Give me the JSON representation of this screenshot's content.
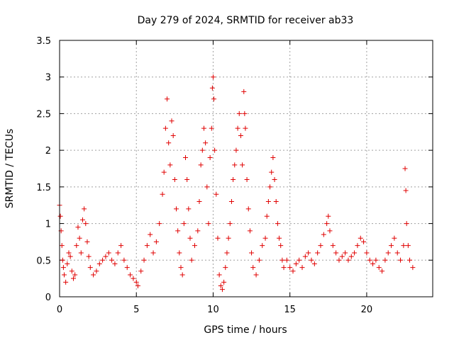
{
  "chart_data": {
    "type": "scatter",
    "title": "Day 279 of 2024, SRMTID for receiver ab33",
    "xlabel": "GPS time / hours",
    "ylabel": "SRMTID / TECUs",
    "xlim": [
      0,
      24.3
    ],
    "ylim": [
      0,
      3.5
    ],
    "xticks": [
      0,
      5,
      10,
      15,
      20
    ],
    "yticks": [
      0,
      0.5,
      1,
      1.5,
      2,
      2.5,
      3,
      3.5
    ],
    "grid": true,
    "marker": "+",
    "series": [
      {
        "name": "SRMTID",
        "color": "#e00000",
        "points": [
          [
            0.0,
            1.25
          ],
          [
            0.05,
            1.1
          ],
          [
            0.1,
            0.9
          ],
          [
            0.15,
            0.7
          ],
          [
            0.2,
            0.5
          ],
          [
            0.25,
            0.4
          ],
          [
            0.3,
            0.3
          ],
          [
            0.4,
            0.2
          ],
          [
            0.5,
            0.45
          ],
          [
            0.6,
            0.6
          ],
          [
            0.7,
            0.55
          ],
          [
            0.8,
            0.35
          ],
          [
            0.9,
            0.25
          ],
          [
            1.0,
            0.3
          ],
          [
            1.1,
            0.7
          ],
          [
            1.2,
            0.95
          ],
          [
            1.3,
            0.8
          ],
          [
            1.4,
            0.6
          ],
          [
            1.5,
            1.05
          ],
          [
            1.6,
            1.2
          ],
          [
            1.7,
            1.0
          ],
          [
            1.8,
            0.75
          ],
          [
            1.9,
            0.55
          ],
          [
            2.0,
            0.4
          ],
          [
            2.2,
            0.3
          ],
          [
            2.4,
            0.35
          ],
          [
            2.6,
            0.45
          ],
          [
            2.8,
            0.5
          ],
          [
            3.0,
            0.55
          ],
          [
            3.2,
            0.6
          ],
          [
            3.4,
            0.5
          ],
          [
            3.6,
            0.45
          ],
          [
            3.8,
            0.6
          ],
          [
            4.0,
            0.7
          ],
          [
            4.2,
            0.5
          ],
          [
            4.4,
            0.4
          ],
          [
            4.6,
            0.3
          ],
          [
            4.8,
            0.25
          ],
          [
            5.0,
            0.2
          ],
          [
            5.1,
            0.15
          ],
          [
            5.3,
            0.35
          ],
          [
            5.5,
            0.5
          ],
          [
            5.7,
            0.7
          ],
          [
            5.9,
            0.85
          ],
          [
            6.1,
            0.6
          ],
          [
            6.3,
            0.75
          ],
          [
            6.5,
            1.0
          ],
          [
            6.7,
            1.4
          ],
          [
            6.8,
            1.7
          ],
          [
            6.9,
            2.3
          ],
          [
            7.0,
            2.7
          ],
          [
            7.1,
            2.1
          ],
          [
            7.2,
            1.8
          ],
          [
            7.3,
            2.4
          ],
          [
            7.4,
            2.2
          ],
          [
            7.5,
            1.6
          ],
          [
            7.6,
            1.2
          ],
          [
            7.7,
            0.9
          ],
          [
            7.8,
            0.6
          ],
          [
            7.9,
            0.4
          ],
          [
            8.0,
            0.3
          ],
          [
            8.1,
            1.0
          ],
          [
            8.2,
            1.9
          ],
          [
            8.3,
            1.6
          ],
          [
            8.4,
            1.2
          ],
          [
            8.5,
            0.8
          ],
          [
            8.6,
            0.5
          ],
          [
            8.8,
            0.7
          ],
          [
            9.0,
            0.9
          ],
          [
            9.1,
            1.3
          ],
          [
            9.2,
            1.8
          ],
          [
            9.3,
            2.0
          ],
          [
            9.4,
            2.3
          ],
          [
            9.5,
            2.1
          ],
          [
            9.6,
            1.5
          ],
          [
            9.7,
            1.0
          ],
          [
            9.8,
            1.9
          ],
          [
            9.9,
            2.3
          ],
          [
            9.95,
            2.85
          ],
          [
            10.0,
            3.0
          ],
          [
            10.05,
            2.7
          ],
          [
            10.1,
            2.0
          ],
          [
            10.2,
            1.4
          ],
          [
            10.3,
            0.8
          ],
          [
            10.4,
            0.3
          ],
          [
            10.5,
            0.15
          ],
          [
            10.6,
            0.1
          ],
          [
            10.7,
            0.2
          ],
          [
            10.8,
            0.4
          ],
          [
            10.9,
            0.6
          ],
          [
            11.0,
            0.8
          ],
          [
            11.1,
            1.0
          ],
          [
            11.2,
            1.3
          ],
          [
            11.3,
            1.6
          ],
          [
            11.4,
            1.8
          ],
          [
            11.5,
            2.0
          ],
          [
            11.6,
            2.3
          ],
          [
            11.7,
            2.5
          ],
          [
            11.8,
            2.2
          ],
          [
            11.9,
            1.8
          ],
          [
            12.0,
            2.8
          ],
          [
            12.05,
            2.5
          ],
          [
            12.1,
            2.3
          ],
          [
            12.2,
            1.6
          ],
          [
            12.3,
            1.2
          ],
          [
            12.4,
            0.9
          ],
          [
            12.5,
            0.6
          ],
          [
            12.6,
            0.4
          ],
          [
            12.8,
            0.3
          ],
          [
            13.0,
            0.5
          ],
          [
            13.2,
            0.7
          ],
          [
            13.4,
            0.8
          ],
          [
            13.5,
            1.1
          ],
          [
            13.6,
            1.3
          ],
          [
            13.7,
            1.5
          ],
          [
            13.8,
            1.7
          ],
          [
            13.9,
            1.9
          ],
          [
            14.0,
            1.6
          ],
          [
            14.1,
            1.3
          ],
          [
            14.2,
            1.0
          ],
          [
            14.3,
            0.8
          ],
          [
            14.4,
            0.7
          ],
          [
            14.5,
            0.5
          ],
          [
            14.6,
            0.4
          ],
          [
            14.8,
            0.5
          ],
          [
            15.0,
            0.4
          ],
          [
            15.2,
            0.35
          ],
          [
            15.4,
            0.45
          ],
          [
            15.6,
            0.5
          ],
          [
            15.8,
            0.4
          ],
          [
            16.0,
            0.55
          ],
          [
            16.2,
            0.6
          ],
          [
            16.4,
            0.5
          ],
          [
            16.6,
            0.45
          ],
          [
            16.8,
            0.6
          ],
          [
            17.0,
            0.7
          ],
          [
            17.2,
            0.85
          ],
          [
            17.4,
            1.0
          ],
          [
            17.5,
            1.1
          ],
          [
            17.6,
            0.9
          ],
          [
            17.8,
            0.7
          ],
          [
            18.0,
            0.6
          ],
          [
            18.2,
            0.5
          ],
          [
            18.4,
            0.55
          ],
          [
            18.6,
            0.6
          ],
          [
            18.8,
            0.5
          ],
          [
            19.0,
            0.55
          ],
          [
            19.2,
            0.6
          ],
          [
            19.4,
            0.7
          ],
          [
            19.6,
            0.8
          ],
          [
            19.8,
            0.75
          ],
          [
            20.0,
            0.6
          ],
          [
            20.2,
            0.5
          ],
          [
            20.4,
            0.45
          ],
          [
            20.6,
            0.5
          ],
          [
            20.8,
            0.4
          ],
          [
            21.0,
            0.35
          ],
          [
            21.2,
            0.5
          ],
          [
            21.4,
            0.6
          ],
          [
            21.6,
            0.7
          ],
          [
            21.8,
            0.8
          ],
          [
            22.0,
            0.6
          ],
          [
            22.2,
            0.5
          ],
          [
            22.4,
            0.7
          ],
          [
            22.5,
            1.75
          ],
          [
            22.55,
            1.45
          ],
          [
            22.6,
            1.0
          ],
          [
            22.7,
            0.7
          ],
          [
            22.8,
            0.5
          ],
          [
            23.0,
            0.4
          ]
        ]
      }
    ]
  }
}
